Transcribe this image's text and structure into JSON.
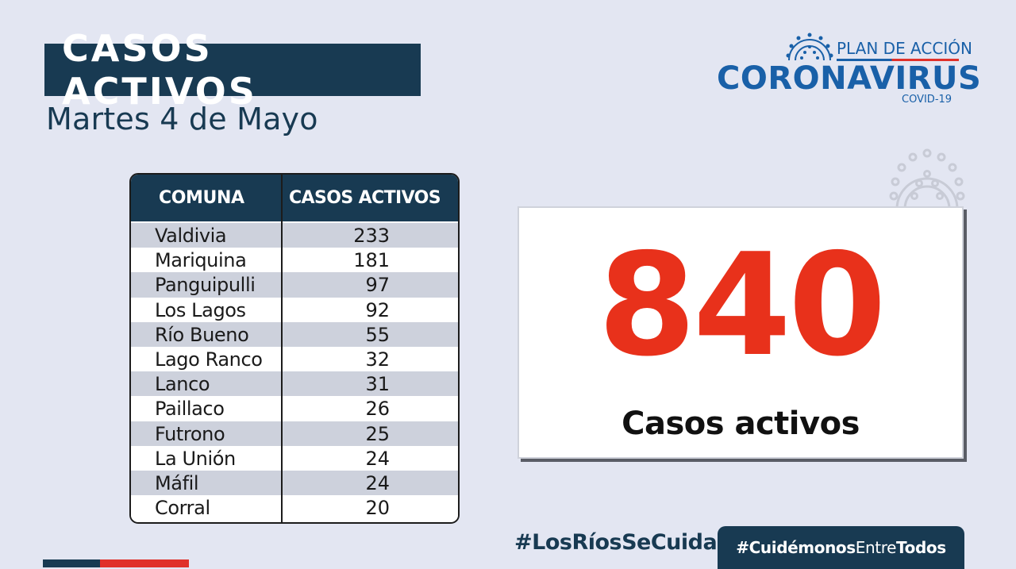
{
  "header": {
    "title": "CASOS ACTIVOS",
    "date": "Martes 4 de Mayo"
  },
  "logo": {
    "plan": "PLAN DE ACCIÓN",
    "name": "CORONAVIRUS",
    "sub": "COVID-19"
  },
  "table": {
    "headers": [
      "COMUNA",
      "CASOS ACTIVOS"
    ],
    "rows": [
      {
        "comuna": "Valdivia",
        "casos": "233"
      },
      {
        "comuna": "Mariquina",
        "casos": "181"
      },
      {
        "comuna": "Panguipulli",
        "casos": "97"
      },
      {
        "comuna": "Los Lagos",
        "casos": "92"
      },
      {
        "comuna": "Río Bueno",
        "casos": "55"
      },
      {
        "comuna": "Lago Ranco",
        "casos": "32"
      },
      {
        "comuna": "Lanco",
        "casos": "31"
      },
      {
        "comuna": "Paillaco",
        "casos": "26"
      },
      {
        "comuna": "Futrono",
        "casos": "25"
      },
      {
        "comuna": "La Unión",
        "casos": "24"
      },
      {
        "comuna": "Máfil",
        "casos": "24"
      },
      {
        "comuna": "Corral",
        "casos": "20"
      }
    ]
  },
  "total": {
    "value": "840",
    "label": "Casos activos"
  },
  "hashtags": {
    "first": "#LosRíosSeCuida",
    "second_a": "#Cuidémonos",
    "second_b": "Entre",
    "second_c": "Todos"
  },
  "colors": {
    "navy": "#183a52",
    "red": "#e8311b",
    "brand_blue": "#1960a8",
    "background": "#e3e6f2"
  },
  "icons": [
    "coronavirus-icon",
    "coronavirus-outline-icon"
  ]
}
